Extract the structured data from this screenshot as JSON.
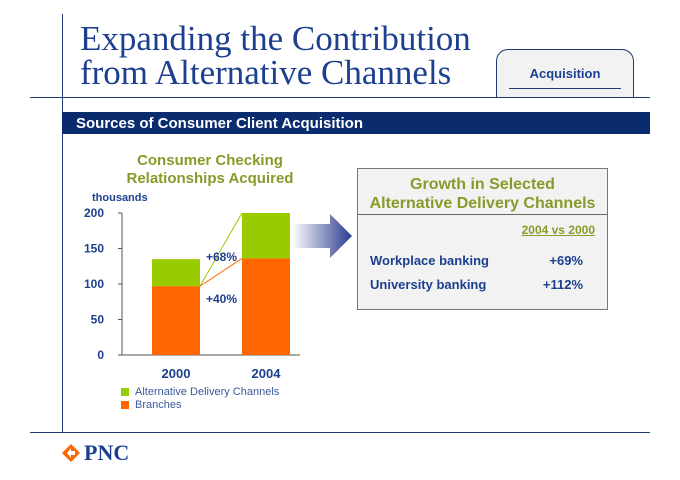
{
  "title": {
    "line1": "Expanding the Contribution",
    "line2": "from Alternative Channels"
  },
  "tab": {
    "label": "Acquisition"
  },
  "section": {
    "heading": "Sources of Consumer Client Acquisition"
  },
  "colors": {
    "alt": "#99cc00",
    "branch": "#ff6600",
    "navy": "#0a2c6e",
    "title": "#1c3f8f",
    "olive": "#8a9a2a"
  },
  "chart_data": {
    "type": "bar",
    "stacked": true,
    "title": "Consumer Checking Relationships Acquired",
    "title_lines": [
      "Consumer Checking",
      "Relationships Acquired"
    ],
    "ylabel": "thousands",
    "xlabel": "",
    "ylim": [
      0,
      200
    ],
    "yticks": [
      0,
      50,
      100,
      150,
      200
    ],
    "categories": [
      "2000",
      "2004"
    ],
    "series": [
      {
        "name": "Branches",
        "values": [
          97,
          136
        ]
      },
      {
        "name": "Alternative Delivery Channels",
        "values": [
          38,
          64
        ]
      }
    ],
    "annotations": [
      "+68%",
      "+40%"
    ],
    "legend": [
      "Alternative Delivery Channels",
      "Branches"
    ],
    "legend_position": "bottom"
  },
  "panel": {
    "title_line1": "Growth in Selected",
    "title_line2": "Alternative Delivery Channels",
    "comparison": "2004 vs 2000",
    "rows": [
      {
        "label": "Workplace banking",
        "value": "+69%"
      },
      {
        "label": "University banking",
        "value": "+112%"
      }
    ]
  },
  "logo": {
    "text": "PNC"
  }
}
